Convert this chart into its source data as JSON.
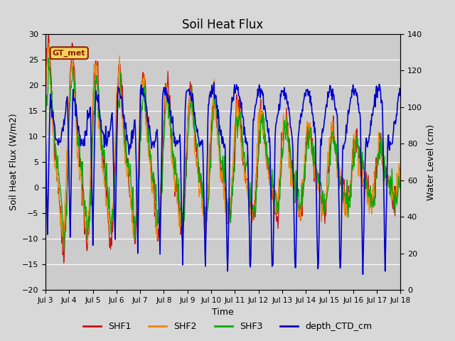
{
  "title": "Soil Heat Flux",
  "ylabel_left": "Soil Heat Flux (W/m2)",
  "ylabel_right": "Water Level (cm)",
  "xlabel": "Time",
  "ylim_left": [
    -20,
    30
  ],
  "ylim_right": [
    0,
    140
  ],
  "yticks_left": [
    -20,
    -15,
    -10,
    -5,
    0,
    5,
    10,
    15,
    20,
    25,
    30
  ],
  "yticks_right": [
    0,
    20,
    40,
    60,
    80,
    100,
    120,
    140
  ],
  "fig_bg_color": "#d8d8d8",
  "plot_bg_color": "#cccccc",
  "annotation_text": "GT_met",
  "annotation_bg": "#f5d060",
  "annotation_border": "#8b2000",
  "colors": {
    "SHF1": "#cc1111",
    "SHF2": "#ee8800",
    "SHF3": "#00aa00",
    "depth_CTD_cm": "#0000cc"
  },
  "legend_labels": [
    "SHF1",
    "SHF2",
    "SHF3",
    "depth_CTD_cm"
  ],
  "n_days": 15,
  "n_per_day": 48
}
